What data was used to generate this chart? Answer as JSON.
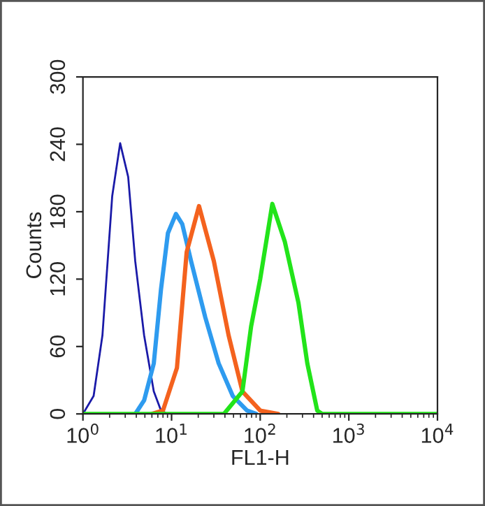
{
  "chart_data": {
    "type": "line",
    "xlabel": "FL1-H",
    "ylabel": "Counts",
    "log": "x",
    "xlim": [
      1,
      10000
    ],
    "ylim": [
      0,
      300
    ],
    "xticks": [
      {
        "value": 1,
        "label": "10$^{0}$"
      },
      {
        "value": 10,
        "label": "10$^{1}$"
      },
      {
        "value": 100,
        "label": "10$^{2}$"
      },
      {
        "value": 1000,
        "label": "10$^{3}$"
      },
      {
        "value": 10000,
        "label": "10$^{4}$"
      }
    ],
    "yticks": [
      0,
      60,
      120,
      180,
      240,
      300
    ],
    "series": [
      {
        "color": "#1a1aa8",
        "x": [
          1.0,
          1.32,
          1.66,
          2.14,
          2.63,
          3.24,
          3.89,
          4.9,
          6.3,
          7.6,
          9
        ],
        "values": [
          0,
          16,
          70,
          194,
          241,
          211,
          136,
          70,
          20,
          3,
          0
        ]
      },
      {
        "color": "#2e9bef",
        "x": [
          3.9,
          4.9,
          6.3,
          7.6,
          9.1,
          11.2,
          13.2,
          16.6,
          24,
          34,
          49,
          71,
          90
        ],
        "values": [
          0,
          12,
          45,
          111,
          161,
          178,
          169,
          136,
          86,
          45,
          16,
          3,
          0
        ]
      },
      {
        "color": "#f4621e",
        "x": [
          6,
          8,
          11.5,
          14.8,
          20.4,
          30,
          44,
          63,
          100,
          160
        ],
        "values": [
          0,
          3,
          41,
          144,
          185,
          136,
          70,
          20,
          3,
          0
        ]
      },
      {
        "color": "#22e41a",
        "x": [
          1,
          39,
          63,
          79,
          100,
          137,
          190,
          270,
          340,
          440,
          500,
          10000
        ],
        "values": [
          0,
          0,
          20,
          78,
          120,
          187,
          153,
          99,
          45,
          3,
          0,
          0
        ]
      }
    ]
  }
}
